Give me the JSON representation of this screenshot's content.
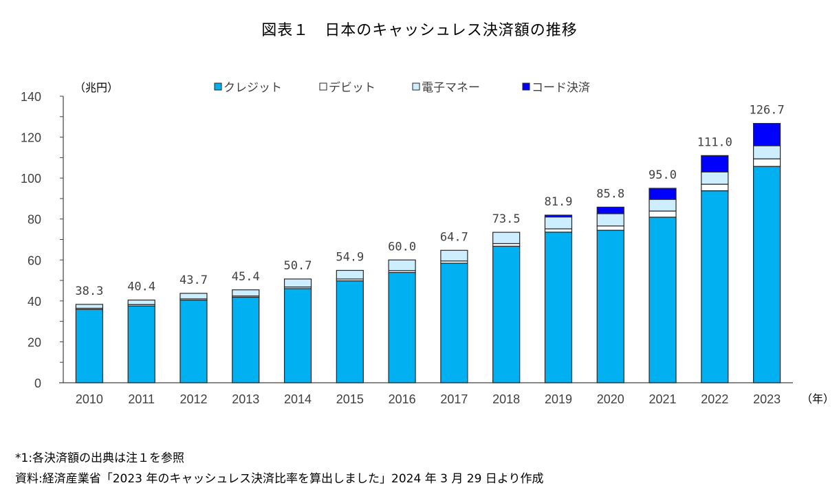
{
  "chart_data": {
    "type": "bar",
    "stacked": true,
    "title": "図表１　日本のキャッシュレス決済額の推移",
    "ylabel": "（兆円）",
    "xlabel": "（年）",
    "ylim": [
      0,
      140
    ],
    "yticks": [
      0,
      20,
      40,
      60,
      80,
      100,
      120,
      140
    ],
    "grid": false,
    "legend_position": "top",
    "categories": [
      "2010",
      "2011",
      "2012",
      "2013",
      "2014",
      "2015",
      "2016",
      "2017",
      "2018",
      "2019",
      "2020",
      "2021",
      "2022",
      "2023"
    ],
    "series": [
      {
        "name": "クレジット",
        "color": "#00B0F0",
        "values": [
          35.8,
          37.5,
          40.4,
          41.8,
          46.0,
          49.8,
          53.9,
          58.4,
          66.7,
          73.6,
          74.5,
          80.9,
          93.8,
          105.7
        ]
      },
      {
        "name": "デビット",
        "color": "#FFFFFF",
        "values": [
          0.6,
          0.7,
          0.6,
          0.6,
          0.8,
          0.9,
          0.9,
          1.1,
          1.3,
          1.6,
          2.1,
          3.0,
          3.2,
          3.7
        ]
      },
      {
        "name": "電子マネー",
        "color": "#CCEEFF",
        "values": [
          1.9,
          2.2,
          2.7,
          3.0,
          3.9,
          4.2,
          5.2,
          5.2,
          5.5,
          5.8,
          6.0,
          5.7,
          6.0,
          6.4
        ]
      },
      {
        "name": "コード決済",
        "color": "#0000FF",
        "values": [
          0,
          0,
          0,
          0,
          0,
          0,
          0,
          0,
          0,
          0.9,
          3.2,
          5.4,
          8.0,
          10.9
        ]
      }
    ],
    "totals": [
      38.3,
      40.4,
      43.7,
      45.4,
      50.7,
      54.9,
      60.0,
      64.7,
      73.5,
      81.9,
      85.8,
      95.0,
      111.0,
      126.7
    ],
    "total_labels": [
      "38.3",
      "40.4",
      "43.7",
      "45.4",
      "50.7",
      "54.9",
      "60.0",
      "64.7",
      "73.5",
      "81.9",
      "85.8",
      "95.0",
      "111.0",
      "126.7"
    ]
  },
  "notes": {
    "line1": "*1:各決済額の出典は注１を参照",
    "line2": "資料:経済産業省「2023 年のキャッシュレス決済比率を算出しました」2024 年 3 月 29 日より作成"
  }
}
